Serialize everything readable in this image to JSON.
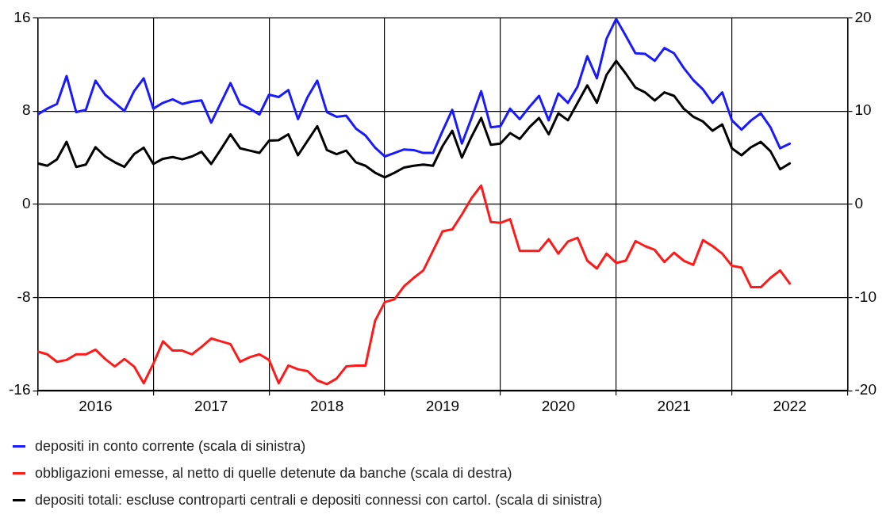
{
  "chart_data": {
    "type": "line",
    "x": [
      "2016-01",
      "2016-02",
      "2016-03",
      "2016-04",
      "2016-05",
      "2016-06",
      "2016-07",
      "2016-08",
      "2016-09",
      "2016-10",
      "2016-11",
      "2016-12",
      "2017-01",
      "2017-02",
      "2017-03",
      "2017-04",
      "2017-05",
      "2017-06",
      "2017-07",
      "2017-08",
      "2017-09",
      "2017-10",
      "2017-11",
      "2017-12",
      "2018-01",
      "2018-02",
      "2018-03",
      "2018-04",
      "2018-05",
      "2018-06",
      "2018-07",
      "2018-08",
      "2018-09",
      "2018-10",
      "2018-11",
      "2018-12",
      "2019-01",
      "2019-02",
      "2019-03",
      "2019-04",
      "2019-05",
      "2019-06",
      "2019-07",
      "2019-08",
      "2019-09",
      "2019-10",
      "2019-11",
      "2019-12",
      "2020-01",
      "2020-02",
      "2020-03",
      "2020-04",
      "2020-05",
      "2020-06",
      "2020-07",
      "2020-08",
      "2020-09",
      "2020-10",
      "2020-11",
      "2020-12",
      "2021-01",
      "2021-02",
      "2021-03",
      "2021-04",
      "2021-05",
      "2021-06",
      "2021-07",
      "2021-08",
      "2021-09",
      "2021-10",
      "2021-11",
      "2021-12",
      "2022-01",
      "2022-02",
      "2022-03",
      "2022-04",
      "2022-05",
      "2022-06",
      "2022-07"
    ],
    "series": [
      {
        "name": "depositi in conto corrente (scala di sinistra)",
        "color": "#1a1aff",
        "values": [
          7.7,
          8.2,
          8.6,
          11.0,
          7.9,
          8.1,
          10.6,
          9.4,
          8.7,
          8.0,
          9.7,
          10.8,
          8.2,
          8.7,
          9.0,
          8.6,
          8.8,
          8.9,
          7.0,
          8.7,
          10.4,
          8.6,
          8.2,
          7.7,
          9.4,
          9.2,
          9.8,
          7.3,
          9.2,
          10.6,
          7.9,
          7.5,
          7.6,
          6.5,
          5.9,
          4.85,
          4.1,
          4.4,
          4.7,
          4.65,
          4.4,
          4.4,
          6.3,
          8.1,
          5.2,
          7.4,
          9.7,
          6.6,
          6.7,
          8.2,
          7.3,
          8.35,
          9.3,
          7.2,
          9.5,
          8.7,
          10.1,
          12.7,
          10.8,
          14.2,
          15.9,
          14.45,
          12.95,
          12.9,
          12.3,
          13.4,
          12.95,
          11.7,
          10.65,
          9.85,
          8.7,
          9.6,
          7.2,
          6.4,
          7.2,
          7.8,
          6.6,
          4.8,
          5.2
        ]
      },
      {
        "name": "obbligazioni emesse, al netto di quelle detenute da banche (scala di destra)",
        "color": "#ff1a1a",
        "axis": "y2",
        "values": [
          -15.8,
          -16.1,
          -16.9,
          -16.7,
          -16.1,
          -16.1,
          -15.6,
          -16.6,
          -17.4,
          -16.6,
          -17.4,
          -19.2,
          -17.1,
          -14.7,
          -15.7,
          -15.7,
          -16.1,
          -15.3,
          -14.4,
          -14.7,
          -15.0,
          -16.9,
          -16.4,
          -16.1,
          -16.7,
          -19.2,
          -17.3,
          -17.7,
          -17.9,
          -18.9,
          -19.3,
          -18.7,
          -17.4,
          -17.3,
          -17.3,
          -12.5,
          -10.5,
          -10.2,
          -8.8,
          -7.9,
          -7.1,
          -5.0,
          -2.9,
          -2.7,
          -1.1,
          0.65,
          2.0,
          -1.9,
          -2.0,
          -1.6,
          -5.0,
          -5.0,
          -5.0,
          -3.75,
          -5.3,
          -4.0,
          -3.6,
          -6.05,
          -6.9,
          -5.3,
          -6.3,
          -6.05,
          -3.95,
          -4.5,
          -4.9,
          -6.2,
          -5.2,
          -6.05,
          -6.5,
          -3.85,
          -4.5,
          -5.3,
          -6.6,
          -6.8,
          -8.9,
          -8.9,
          -7.9,
          -7.1,
          -8.5
        ]
      },
      {
        "name": "depositi totali: escluse controparti centrali e depositi connessi con cartol. (scala di sinistra)",
        "color": "#000000",
        "values": [
          3.5,
          3.3,
          3.85,
          5.35,
          3.2,
          3.4,
          4.9,
          4.1,
          3.6,
          3.2,
          4.3,
          4.85,
          3.45,
          3.9,
          4.05,
          3.85,
          4.1,
          4.5,
          3.45,
          4.7,
          6.0,
          4.8,
          4.6,
          4.4,
          5.45,
          5.5,
          6.0,
          4.2,
          5.45,
          6.7,
          4.65,
          4.3,
          4.6,
          3.6,
          3.3,
          2.7,
          2.3,
          2.7,
          3.15,
          3.3,
          3.4,
          3.3,
          5.0,
          6.3,
          4.0,
          5.8,
          7.4,
          5.1,
          5.2,
          6.1,
          5.6,
          6.6,
          7.4,
          6.0,
          7.8,
          7.2,
          8.7,
          10.2,
          8.7,
          11.1,
          12.3,
          11.2,
          10.0,
          9.6,
          8.9,
          9.6,
          9.3,
          8.2,
          7.5,
          7.1,
          6.3,
          6.85,
          4.8,
          4.2,
          4.9,
          5.35,
          4.55,
          3.0,
          3.5
        ]
      }
    ],
    "xlim": [
      "2016-01",
      "2023-01"
    ],
    "xticks": [
      {
        "value": "2016-01",
        "label": null
      },
      {
        "value": "2016-07",
        "label": "2016"
      },
      {
        "value": "2017-01",
        "label": null
      },
      {
        "value": "2017-07",
        "label": "2017"
      },
      {
        "value": "2018-01",
        "label": null
      },
      {
        "value": "2018-07",
        "label": "2018"
      },
      {
        "value": "2019-01",
        "label": null
      },
      {
        "value": "2019-07",
        "label": "2019"
      },
      {
        "value": "2020-01",
        "label": null
      },
      {
        "value": "2020-07",
        "label": "2020"
      },
      {
        "value": "2021-01",
        "label": null
      },
      {
        "value": "2021-07",
        "label": "2021"
      },
      {
        "value": "2022-01",
        "label": null
      },
      {
        "value": "2022-07",
        "label": "2022"
      },
      {
        "value": "2023-01",
        "label": null
      }
    ],
    "ylim": [
      -16,
      16
    ],
    "yticks": [
      -16,
      -8,
      0,
      8,
      16
    ],
    "y2lim": [
      -20,
      20
    ],
    "y2ticks": [
      -20,
      -10,
      0,
      10,
      20
    ],
    "grid": true,
    "legend": "bottom",
    "marker": "none",
    "line_style": "solid"
  }
}
